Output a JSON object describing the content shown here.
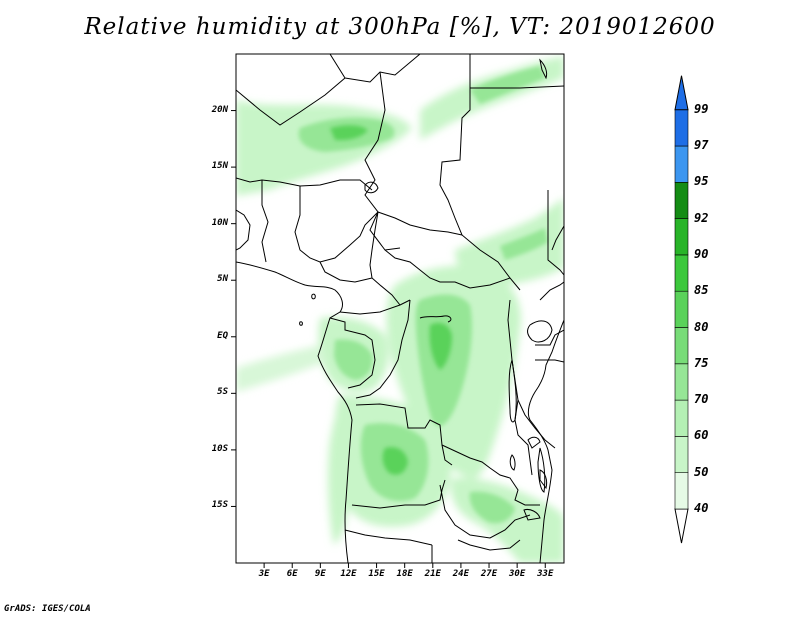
{
  "title": "Relative humidity at 300hPa [%], VT: 2019012600",
  "credit": "GrADS: IGES/COLA",
  "map": {
    "lon_range": [
      0,
      35
    ],
    "lat_range": [
      -20,
      25
    ],
    "lat_ticks": [
      {
        "value": 20,
        "label": "20N"
      },
      {
        "value": 15,
        "label": "15N"
      },
      {
        "value": 10,
        "label": "10N"
      },
      {
        "value": 5,
        "label": "5N"
      },
      {
        "value": 0,
        "label": "EQ"
      },
      {
        "value": -5,
        "label": "5S"
      },
      {
        "value": -10,
        "label": "10S"
      },
      {
        "value": -15,
        "label": "15S"
      }
    ],
    "lon_ticks": [
      {
        "value": 3,
        "label": "3E"
      },
      {
        "value": 6,
        "label": "6E"
      },
      {
        "value": 9,
        "label": "9E"
      },
      {
        "value": 12,
        "label": "12E"
      },
      {
        "value": 15,
        "label": "15E"
      },
      {
        "value": 18,
        "label": "18E"
      },
      {
        "value": 21,
        "label": "21E"
      },
      {
        "value": 24,
        "label": "24E"
      },
      {
        "value": 27,
        "label": "27E"
      },
      {
        "value": 30,
        "label": "30E"
      },
      {
        "value": 33,
        "label": "33E"
      }
    ]
  },
  "colorbar": {
    "levels": [
      "40",
      "50",
      "60",
      "70",
      "75",
      "80",
      "85",
      "90",
      "92",
      "95",
      "97",
      "99"
    ],
    "colors": [
      "#e6fae6",
      "#c8f5c8",
      "#b4f0b4",
      "#96e696",
      "#78dc78",
      "#5ad25a",
      "#3cc83c",
      "#28b428",
      "#148c14",
      "#3c96f0",
      "#1e6ee6",
      "#0a4ed2"
    ],
    "below_color": "#ffffff",
    "above_color": "#1e6ee6"
  },
  "chart_data": {
    "type": "heatmap",
    "title": "Relative humidity at 300hPa [%], VT: 2019012600",
    "xlabel": "",
    "ylabel": "",
    "x_range_degE": [
      0,
      35
    ],
    "y_range_degN": [
      -20,
      25
    ],
    "colorbar_levels": [
      40,
      50,
      60,
      70,
      75,
      80,
      85,
      90,
      92,
      95,
      97,
      99
    ],
    "regions": [
      {
        "lon": [
          0,
          12
        ],
        "lat": [
          13,
          21
        ],
        "rh_range": [
          40,
          70
        ]
      },
      {
        "lon": [
          20,
          35
        ],
        "lat": [
          19,
          24
        ],
        "rh_range": [
          40,
          70
        ]
      },
      {
        "lon": [
          22,
          35
        ],
        "lat": [
          6,
          12
        ],
        "rh_range": [
          40,
          60
        ]
      },
      {
        "lon": [
          14,
          32
        ],
        "lat": [
          -14,
          6
        ],
        "rh_range": [
          40,
          75
        ]
      },
      {
        "lon": [
          10,
          22
        ],
        "lat": [
          -18,
          -7
        ],
        "rh_range": [
          40,
          75
        ]
      },
      {
        "lon": [
          24,
          35
        ],
        "lat": [
          -20,
          -12
        ],
        "rh_range": [
          40,
          70
        ]
      },
      {
        "lon": [
          0,
          10
        ],
        "lat": [
          -6,
          1
        ],
        "rh_range": [
          40,
          60
        ]
      }
    ]
  }
}
